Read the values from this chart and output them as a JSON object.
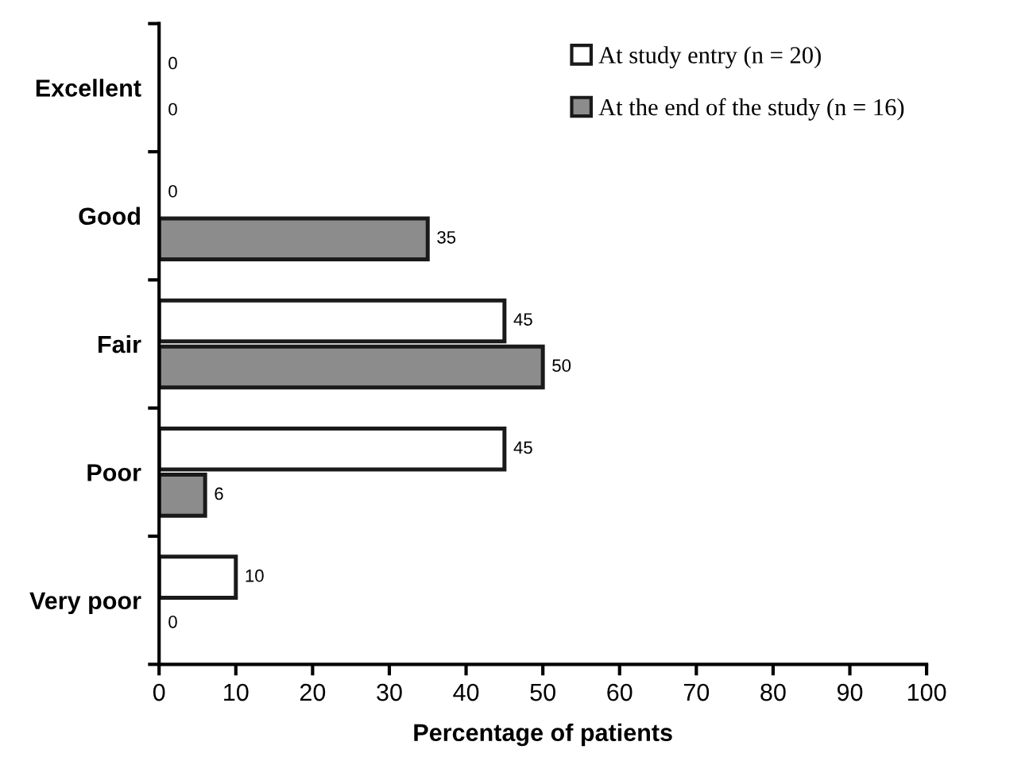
{
  "chart_data": {
    "type": "bar",
    "orientation": "horizontal",
    "xlabel": "Percentage of patients",
    "categories": [
      "Excellent",
      "Good",
      "Fair",
      "Poor",
      "Very poor"
    ],
    "series": [
      {
        "name": "At study entry (n = 20)",
        "color": "#ffffff",
        "values": [
          0,
          0,
          45,
          45,
          10
        ]
      },
      {
        "name": "At the end of the study (n = 16)",
        "color": "#8c8c8c",
        "values": [
          0,
          35,
          50,
          6,
          0
        ]
      }
    ],
    "xlim": [
      0,
      100
    ],
    "xticks": [
      0,
      10,
      20,
      30,
      40,
      50,
      60,
      70,
      80,
      90,
      100
    ],
    "data_labels": true,
    "grid": false,
    "legend": "top right"
  }
}
